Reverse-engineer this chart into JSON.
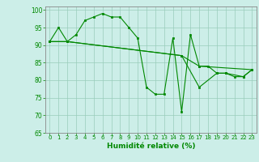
{
  "xlabel": "Humidité relative (%)",
  "xlim": [
    -0.5,
    23.5
  ],
  "ylim": [
    65,
    101
  ],
  "yticks": [
    65,
    70,
    75,
    80,
    85,
    90,
    95,
    100
  ],
  "xticks": [
    0,
    1,
    2,
    3,
    4,
    5,
    6,
    7,
    8,
    9,
    10,
    11,
    12,
    13,
    14,
    15,
    16,
    17,
    18,
    19,
    20,
    21,
    22,
    23
  ],
  "bg_color": "#cceee8",
  "grid_color": "#99ccbb",
  "line_color": "#008800",
  "curves": [
    {
      "x": [
        0,
        1,
        2,
        3,
        4,
        5,
        6,
        7,
        8,
        9,
        10,
        11,
        12,
        13,
        14,
        15,
        16,
        17,
        18,
        19,
        20,
        21,
        22,
        23
      ],
      "y": [
        91,
        95,
        91,
        93,
        97,
        98,
        99,
        98,
        98,
        95,
        92,
        78,
        76,
        76,
        92,
        71,
        93,
        84,
        84,
        82,
        82,
        81,
        81,
        83
      ]
    },
    {
      "x": [
        0,
        2,
        15,
        17,
        23
      ],
      "y": [
        91,
        91,
        87,
        84,
        83
      ]
    },
    {
      "x": [
        0,
        2,
        15,
        17,
        19,
        20,
        22,
        23
      ],
      "y": [
        91,
        91,
        87,
        78,
        82,
        82,
        81,
        83
      ]
    }
  ]
}
